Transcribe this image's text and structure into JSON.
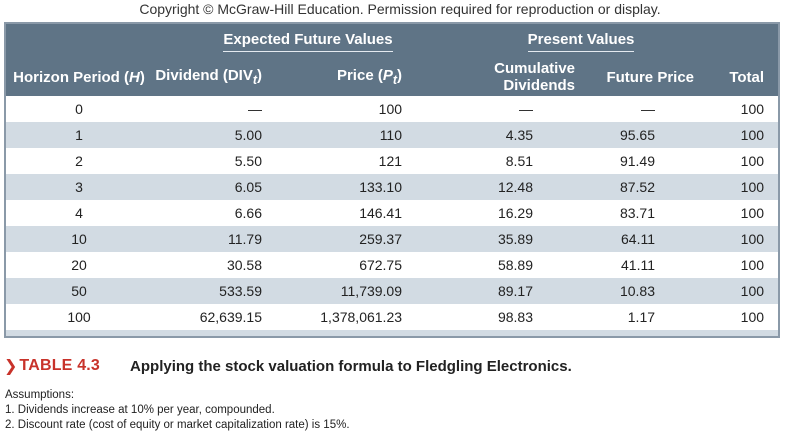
{
  "copyright": "Copyright © McGraw-Hill Education. Permission required for reproduction or display.",
  "table": {
    "group_headers": {
      "expected": "Expected Future Values",
      "present": "Present Values"
    },
    "columns": {
      "horizon": {
        "text": "Horizon Period (",
        "var": "H",
        "end": ")"
      },
      "dividend": {
        "text": "Dividend (DIV",
        "sub": "t",
        "end": ")"
      },
      "price": {
        "text": "Price (",
        "var": "P",
        "sub": "t",
        "end": ")"
      },
      "cumulative": "Cumulative Dividends",
      "future_price": "Future Price",
      "total": "Total"
    },
    "rows": [
      {
        "horizon": "0",
        "dividend": "—",
        "price": "100",
        "cumulative": "—",
        "future_price": "—",
        "total": "100"
      },
      {
        "horizon": "1",
        "dividend": "5.00",
        "price": "110",
        "cumulative": "4.35",
        "future_price": "95.65",
        "total": "100"
      },
      {
        "horizon": "2",
        "dividend": "5.50",
        "price": "121",
        "cumulative": "8.51",
        "future_price": "91.49",
        "total": "100"
      },
      {
        "horizon": "3",
        "dividend": "6.05",
        "price": "133.10",
        "cumulative": "12.48",
        "future_price": "87.52",
        "total": "100"
      },
      {
        "horizon": "4",
        "dividend": "6.66",
        "price": "146.41",
        "cumulative": "16.29",
        "future_price": "83.71",
        "total": "100"
      },
      {
        "horizon": "10",
        "dividend": "11.79",
        "price": "259.37",
        "cumulative": "35.89",
        "future_price": "64.11",
        "total": "100"
      },
      {
        "horizon": "20",
        "dividend": "30.58",
        "price": "672.75",
        "cumulative": "58.89",
        "future_price": "41.11",
        "total": "100"
      },
      {
        "horizon": "50",
        "dividend": "533.59",
        "price": "11,739.09",
        "cumulative": "89.17",
        "future_price": "10.83",
        "total": "100"
      },
      {
        "horizon": "100",
        "dividend": "62,639.15",
        "price": "1,378,061.23",
        "cumulative": "98.83",
        "future_price": "1.17",
        "total": "100"
      }
    ]
  },
  "caption": {
    "marker": "❯",
    "label": "TABLE 4.3",
    "text": "Applying the stock valuation formula to Fledgling Electronics."
  },
  "notes": {
    "title": "Assumptions:",
    "items": [
      "1. Dividends increase at 10% per year, compounded.",
      "2. Discount rate (cost of equity or market capitalization rate) is 15%."
    ]
  },
  "colors": {
    "header_bg": "#5f7486",
    "header_text": "#ffffff",
    "row_alt": "#d2dbe3",
    "row_base": "#ffffff",
    "caption_accent": "#c8322a"
  }
}
